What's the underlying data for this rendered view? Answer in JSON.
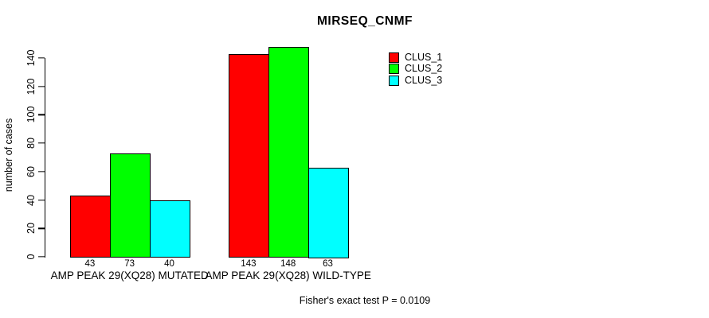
{
  "chart_data": {
    "type": "bar",
    "title": "MIRSEQ_CNMF",
    "ylabel": "number of cases",
    "xlabel": "",
    "ylim": [
      0,
      140
    ],
    "yticks": [
      0,
      20,
      40,
      60,
      80,
      100,
      120,
      140
    ],
    "grid": false,
    "background": "#FFFFFF",
    "axis_color": "#000000",
    "categories": [
      "AMP PEAK 29(XQ28) MUTATED",
      "AMP PEAK 29(XQ28) WILD-TYPE"
    ],
    "series": [
      {
        "name": "CLUS_1",
        "color": "#FF0000",
        "values": [
          43,
          143
        ]
      },
      {
        "name": "CLUS_2",
        "color": "#00FF00",
        "values": [
          73,
          148
        ]
      },
      {
        "name": "CLUS_3",
        "color": "#00FFFF",
        "values": [
          40,
          63
        ]
      }
    ],
    "bar_value_labels_shown": true,
    "legend": {
      "position": "top-right-inside",
      "entries": [
        "CLUS_1",
        "CLUS_2",
        "CLUS_3"
      ]
    },
    "annotation": "Fisher's exact test P = 0.0109"
  }
}
